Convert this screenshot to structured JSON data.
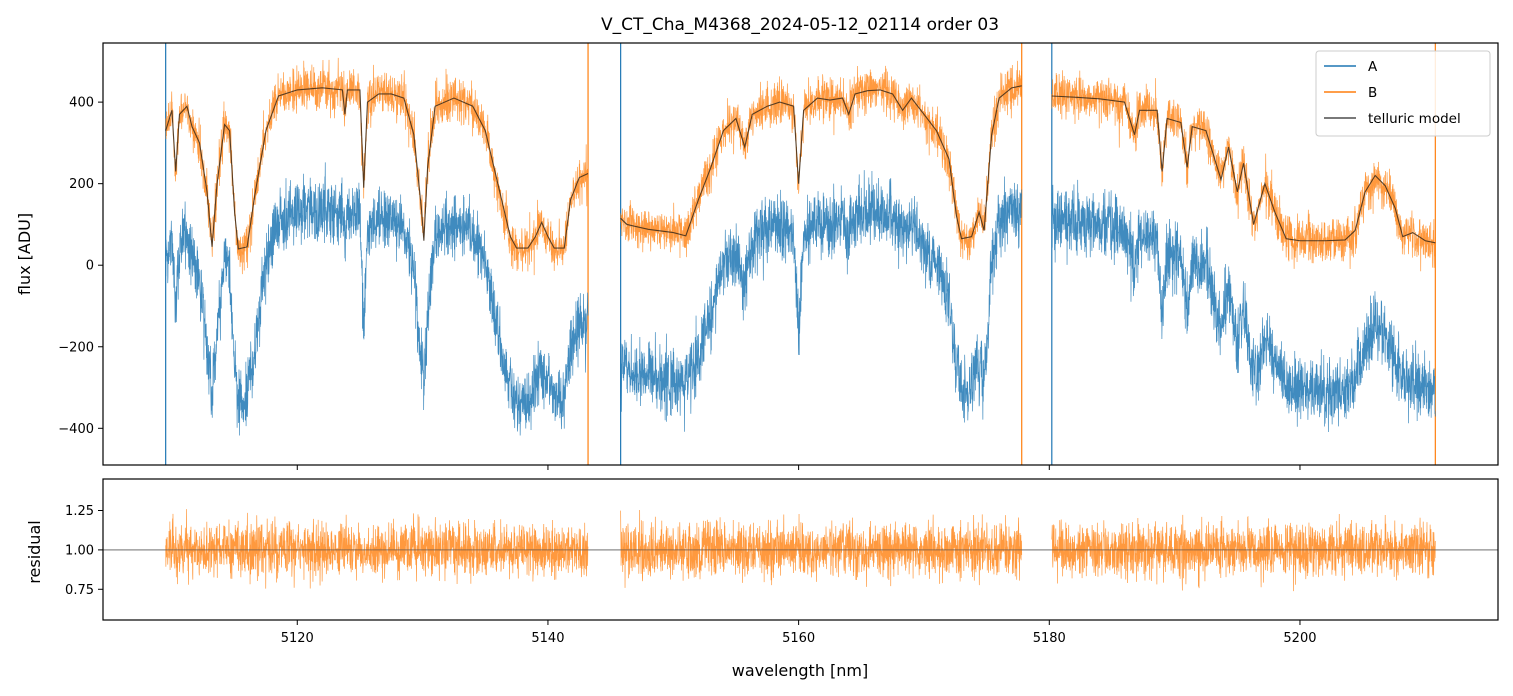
{
  "chart_data": {
    "type": "line",
    "title": "V_CT_Cha_M4368_2024-05-12_02114  order 03",
    "xlabel": "wavelength [nm]",
    "xlim": [
      5104.5,
      5215.8
    ],
    "x_ticks": [
      5120,
      5140,
      5160,
      5180,
      5200
    ],
    "x_tick_labels": [
      "5120",
      "5140",
      "5160",
      "5180",
      "5200"
    ],
    "segments": [
      [
        5109.5,
        5143.2
      ],
      [
        5145.8,
        5177.8
      ],
      [
        5180.2,
        5210.8
      ]
    ],
    "legend": {
      "location": "upper right",
      "entries": [
        {
          "label": "A",
          "color": "#1f77b4"
        },
        {
          "label": "B",
          "color": "#ff7f0e"
        },
        {
          "label": "telluric model",
          "color": "#4d4d4d"
        }
      ]
    },
    "panels": [
      {
        "name": "flux",
        "ylabel": "flux [ADU]",
        "ylim": [
          -490,
          545
        ],
        "y_ticks": [
          -400,
          -200,
          0,
          200,
          400
        ],
        "y_tick_labels": [
          "−400",
          "−200",
          "0",
          "200",
          "400"
        ],
        "series": [
          {
            "name": "telluric model",
            "color": "#4d4d4d",
            "points": [
              [
                5109.5,
                330
              ],
              [
                5110.0,
                380
              ],
              [
                5110.3,
                230
              ],
              [
                5110.6,
                370
              ],
              [
                5111.2,
                390
              ],
              [
                5111.6,
                340
              ],
              [
                5112.2,
                300
              ],
              [
                5112.8,
                180
              ],
              [
                5113.2,
                45
              ],
              [
                5113.6,
                200
              ],
              [
                5114.2,
                345
              ],
              [
                5114.6,
                330
              ],
              [
                5115.0,
                130
              ],
              [
                5115.3,
                40
              ],
              [
                5116.0,
                45
              ],
              [
                5116.6,
                170
              ],
              [
                5117.5,
                330
              ],
              [
                5118.5,
                415
              ],
              [
                5120,
                430
              ],
              [
                5122,
                435
              ],
              [
                5123.6,
                430
              ],
              [
                5123.8,
                370
              ],
              [
                5124.0,
                430
              ],
              [
                5125.0,
                430
              ],
              [
                5125.3,
                190
              ],
              [
                5125.6,
                400
              ],
              [
                5126.5,
                420
              ],
              [
                5127.5,
                420
              ],
              [
                5128.5,
                410
              ],
              [
                5129.3,
                320
              ],
              [
                5129.9,
                140
              ],
              [
                5130.1,
                60
              ],
              [
                5130.4,
                240
              ],
              [
                5131.0,
                390
              ],
              [
                5132.5,
                410
              ],
              [
                5134,
                390
              ],
              [
                5135,
                330
              ],
              [
                5136,
                200
              ],
              [
                5137,
                70
              ],
              [
                5137.5,
                42
              ],
              [
                5138.4,
                42
              ],
              [
                5139,
                70
              ],
              [
                5139.5,
                105
              ],
              [
                5140.0,
                70
              ],
              [
                5140.5,
                42
              ],
              [
                5141.3,
                42
              ],
              [
                5141.8,
                160
              ],
              [
                5142.5,
                215
              ],
              [
                5143.2,
                225
              ],
              null,
              [
                5145.8,
                115
              ],
              [
                5146.3,
                100
              ],
              [
                5148,
                88
              ],
              [
                5150,
                80
              ],
              [
                5151,
                72
              ],
              [
                5152,
                160
              ],
              [
                5153,
                240
              ],
              [
                5154,
                330
              ],
              [
                5155,
                360
              ],
              [
                5155.7,
                290
              ],
              [
                5156.3,
                370
              ],
              [
                5157.5,
                390
              ],
              [
                5158.5,
                400
              ],
              [
                5159.6,
                390
              ],
              [
                5160.0,
                200
              ],
              [
                5160.4,
                380
              ],
              [
                5161.5,
                410
              ],
              [
                5162.5,
                405
              ],
              [
                5163.5,
                410
              ],
              [
                5164,
                370
              ],
              [
                5164.5,
                420
              ],
              [
                5165.5,
                428
              ],
              [
                5166.5,
                430
              ],
              [
                5167.5,
                420
              ],
              [
                5168.3,
                380
              ],
              [
                5169,
                410
              ],
              [
                5170,
                370
              ],
              [
                5171,
                330
              ],
              [
                5172,
                260
              ],
              [
                5172.6,
                120
              ],
              [
                5173,
                65
              ],
              [
                5173.8,
                70
              ],
              [
                5174.4,
                130
              ],
              [
                5174.8,
                85
              ],
              [
                5175.4,
                320
              ],
              [
                5176,
                410
              ],
              [
                5177,
                435
              ],
              [
                5177.8,
                440
              ],
              null,
              [
                5180.2,
                415
              ],
              [
                5182,
                412
              ],
              [
                5184,
                408
              ],
              [
                5186,
                400
              ],
              [
                5186.8,
                320
              ],
              [
                5187.2,
                380
              ],
              [
                5188.6,
                380
              ],
              [
                5189.0,
                230
              ],
              [
                5189.4,
                360
              ],
              [
                5190.5,
                350
              ],
              [
                5191.0,
                240
              ],
              [
                5191.4,
                340
              ],
              [
                5192.5,
                330
              ],
              [
                5193.7,
                210
              ],
              [
                5194.3,
                290
              ],
              [
                5195.0,
                180
              ],
              [
                5195.5,
                250
              ],
              [
                5196.3,
                100
              ],
              [
                5197.2,
                200
              ],
              [
                5198,
                130
              ],
              [
                5198.9,
                65
              ],
              [
                5200,
                60
              ],
              [
                5202,
                60
              ],
              [
                5203.6,
                62
              ],
              [
                5204.4,
                85
              ],
              [
                5205.2,
                180
              ],
              [
                5206,
                220
              ],
              [
                5206.8,
                195
              ],
              [
                5207.6,
                140
              ],
              [
                5208.2,
                70
              ],
              [
                5209,
                80
              ],
              [
                5210,
                60
              ],
              [
                5210.8,
                55
              ]
            ]
          }
        ]
      },
      {
        "name": "residual",
        "ylabel": "residual",
        "ylim": [
          0.555,
          1.45
        ],
        "y_ticks": [
          0.75,
          1.0,
          1.25
        ],
        "y_tick_labels": [
          "0.75",
          "1.00",
          "1.25"
        ],
        "reference_line": 1.0
      }
    ],
    "notes": "Series A (blue) and B (orange) are dense noisy spectra: A is roughly B offset downward, B roughly follows the telluric model; residual is B divided by model, scattered around 1.00."
  }
}
